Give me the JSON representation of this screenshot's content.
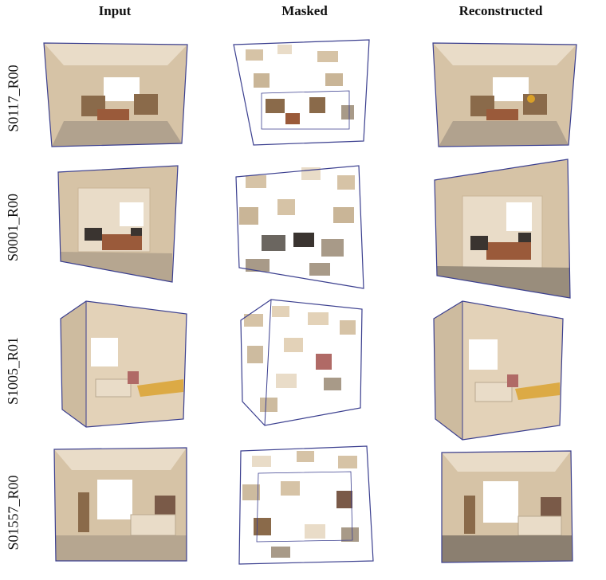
{
  "columns": [
    "Input",
    "Masked",
    "Reconstructed"
  ],
  "rows": [
    "S0117_R00",
    "S0001_R00",
    "S1005_R01",
    "S01557_R00"
  ],
  "colors": {
    "wall": "#d6c3a6",
    "wall_light": "#e9dcc8",
    "floor": "#a89a88",
    "bed": "#9a5a3a",
    "dark": "#3a3430",
    "frame": "#3b3f8f",
    "accent": "#d9a028"
  }
}
